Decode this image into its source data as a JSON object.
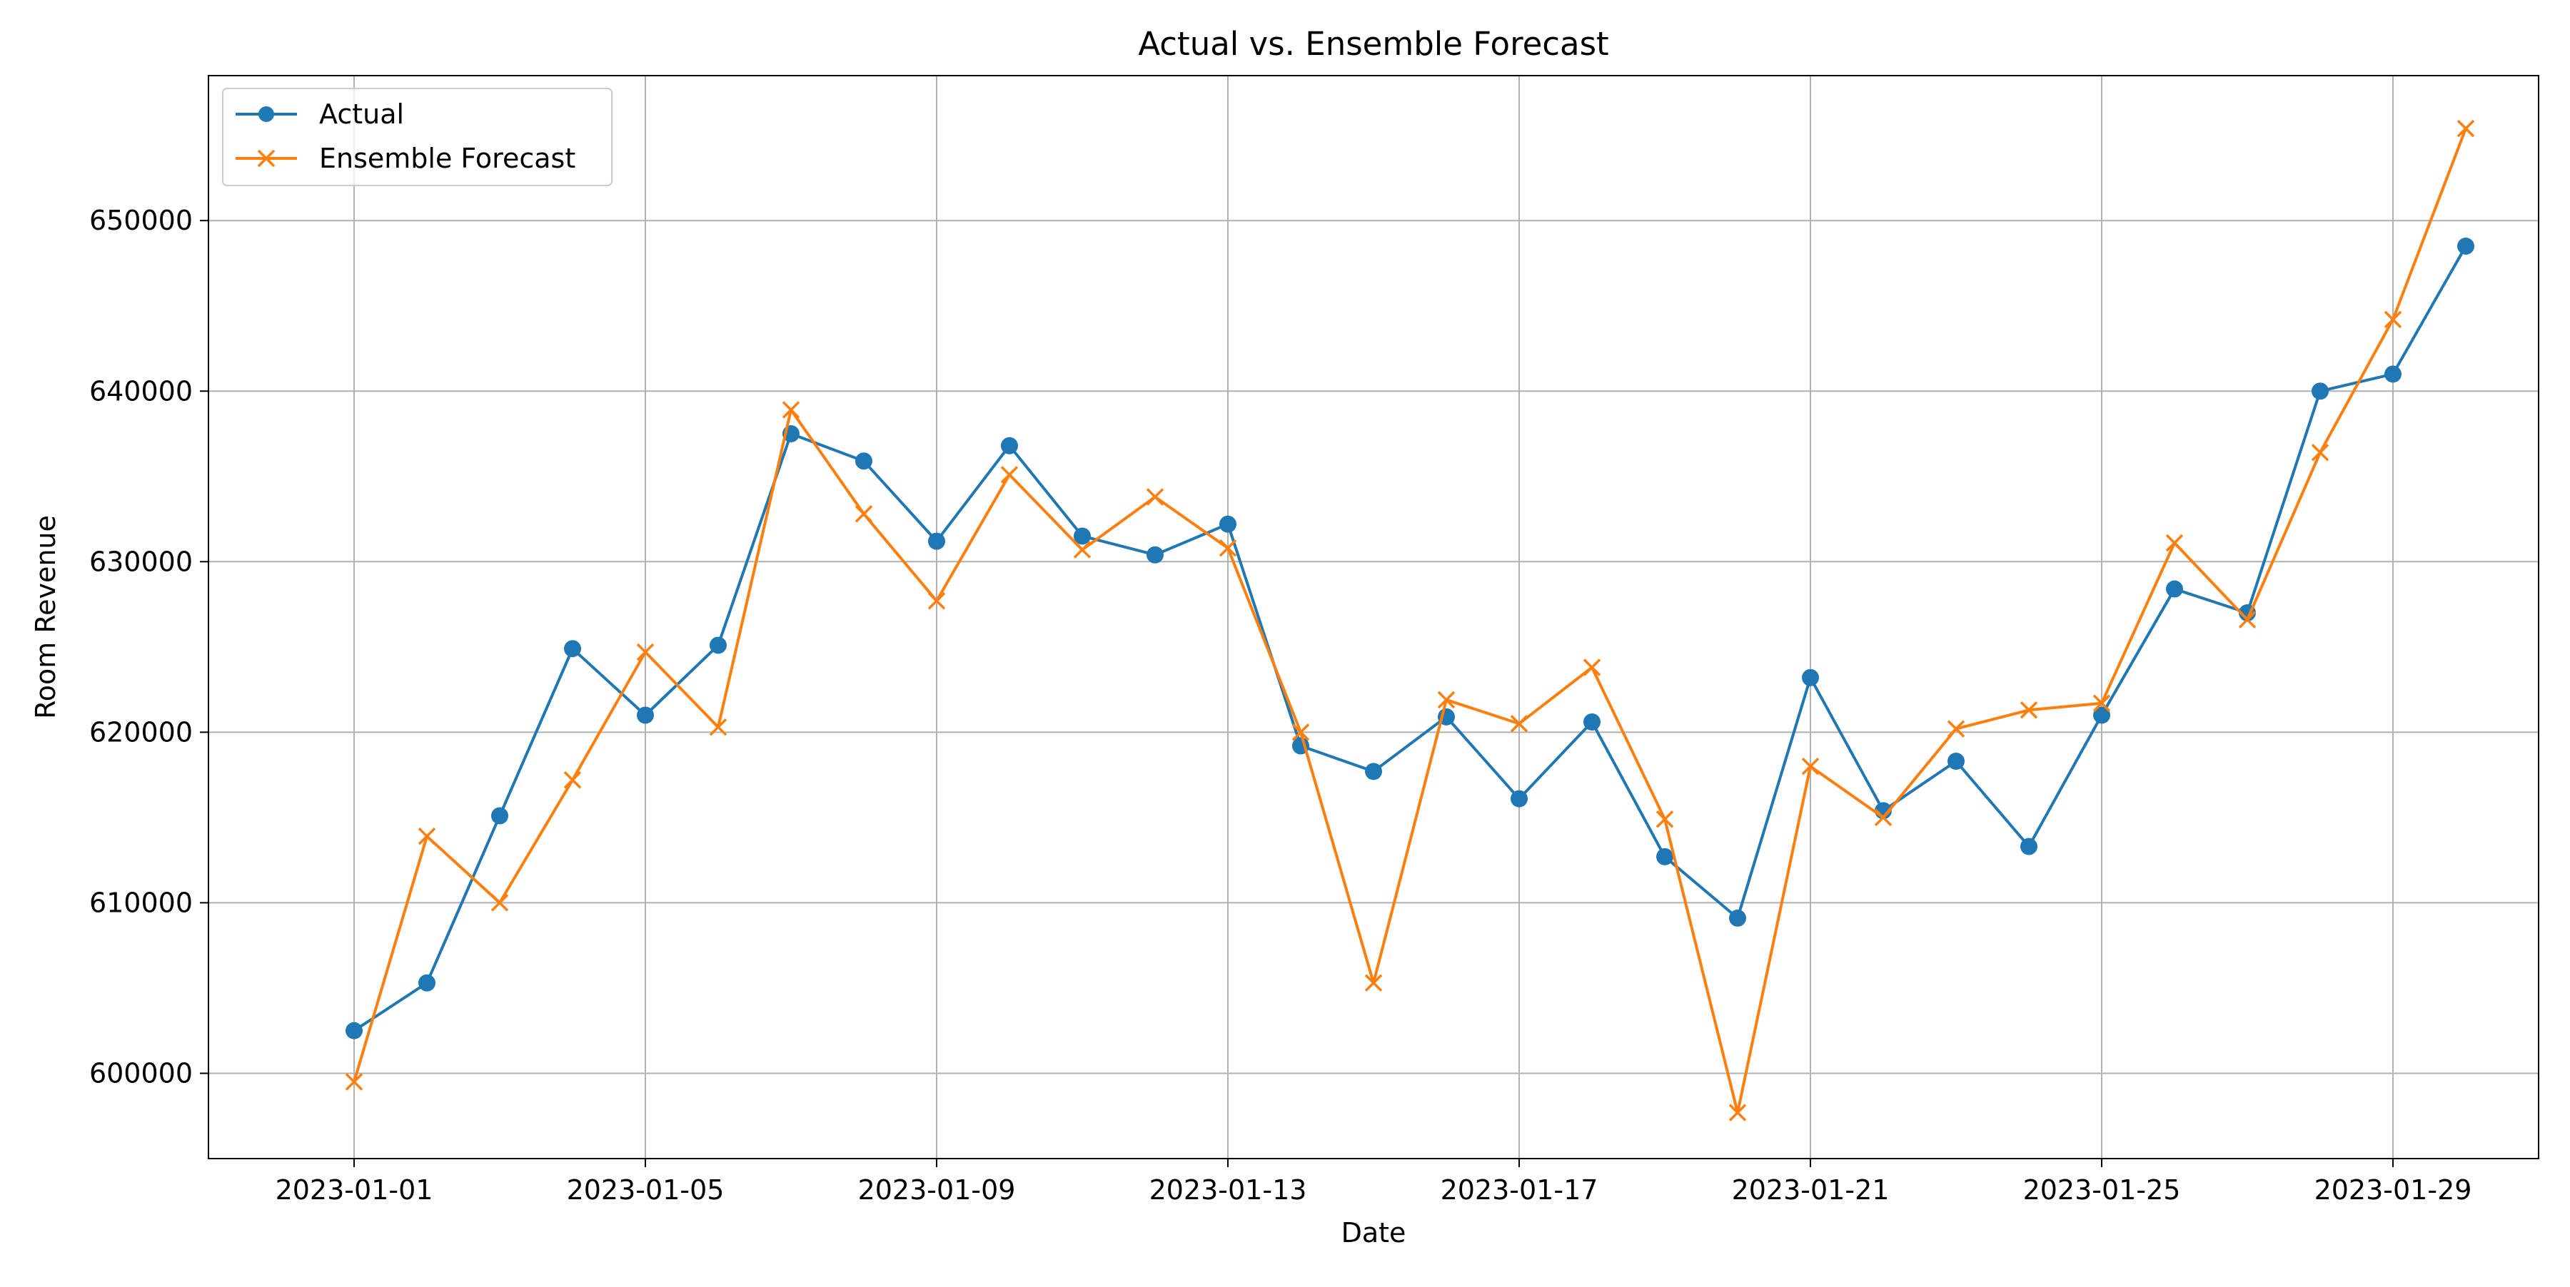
{
  "chart_data": {
    "type": "line",
    "title": "Actual vs. Ensemble Forecast",
    "xlabel": "Date",
    "ylabel": "Room Revenue",
    "x": [
      "2023-01-01",
      "2023-01-02",
      "2023-01-03",
      "2023-01-04",
      "2023-01-05",
      "2023-01-06",
      "2023-01-07",
      "2023-01-08",
      "2023-01-09",
      "2023-01-10",
      "2023-01-11",
      "2023-01-12",
      "2023-01-13",
      "2023-01-14",
      "2023-01-15",
      "2023-01-16",
      "2023-01-17",
      "2023-01-18",
      "2023-01-19",
      "2023-01-20",
      "2023-01-21",
      "2023-01-22",
      "2023-01-23",
      "2023-01-24",
      "2023-01-25",
      "2023-01-26",
      "2023-01-27",
      "2023-01-28",
      "2023-01-29",
      "2023-01-30"
    ],
    "x_ticks": [
      "2023-01-01",
      "2023-01-05",
      "2023-01-09",
      "2023-01-13",
      "2023-01-17",
      "2023-01-21",
      "2023-01-25",
      "2023-01-29"
    ],
    "y_ticks": [
      600000,
      610000,
      620000,
      630000,
      640000,
      650000
    ],
    "xlim": [
      "2022-12-30",
      "2023-01-31"
    ],
    "ylim": [
      595000,
      658500
    ],
    "grid": true,
    "legend_position": "top-left",
    "series": [
      {
        "name": "Actual",
        "color": "#1f77b4",
        "marker": "circle",
        "values": [
          602500,
          605300,
          615100,
          624900,
          621000,
          625100,
          637500,
          635900,
          631200,
          636800,
          631500,
          630400,
          632200,
          619200,
          617700,
          620900,
          616100,
          620600,
          612700,
          609100,
          623200,
          615400,
          618300,
          613300,
          621000,
          628400,
          627000,
          640000,
          641000,
          648500
        ]
      },
      {
        "name": "Ensemble Forecast",
        "color": "#ff7f0e",
        "marker": "x",
        "values": [
          599500,
          613900,
          610000,
          617200,
          624700,
          620300,
          638900,
          632800,
          627700,
          635100,
          630700,
          633800,
          630800,
          620000,
          605300,
          621900,
          620500,
          623800,
          614900,
          597700,
          618000,
          615000,
          620200,
          621300,
          621700,
          631100,
          626600,
          636400,
          644200,
          655400
        ]
      }
    ]
  }
}
